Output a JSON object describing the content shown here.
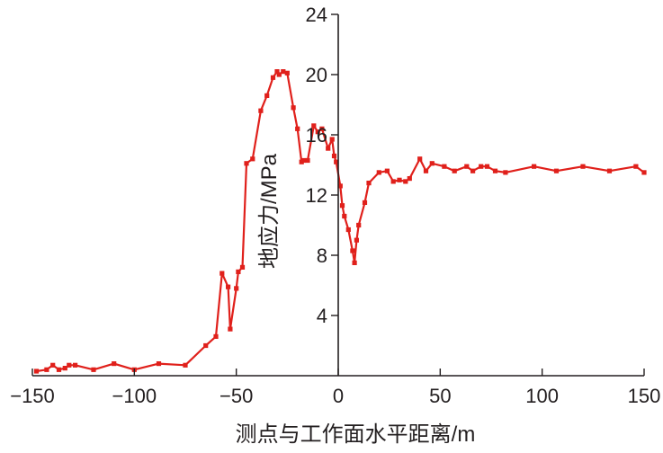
{
  "chart_data": {
    "type": "line",
    "title": "",
    "xlabel": "测点与工作面水平距离/m",
    "ylabel": "地应力/MPa",
    "xlim": [
      -150,
      150
    ],
    "ylim": [
      0,
      24
    ],
    "xticks": [
      -150,
      -100,
      -50,
      0,
      50,
      100,
      150
    ],
    "yticks": [
      4,
      8,
      12,
      16,
      20,
      24
    ],
    "x_tick_labels": [
      "−150",
      "−100",
      "−50",
      "0",
      "50",
      "100",
      "150"
    ],
    "y_tick_labels": [
      "4",
      "8",
      "12",
      "16",
      "20",
      "24"
    ],
    "grid": false,
    "legend": "none",
    "series": [
      {
        "color": "#e0201b",
        "x": [
          -148,
          -143,
          -140,
          -137,
          -134,
          -132,
          -129,
          -120,
          -110,
          -100,
          -88,
          -75,
          -65,
          -60,
          -57,
          -54,
          -53,
          -50,
          -49,
          -47,
          -45,
          -42,
          -38,
          -35,
          -32,
          -30,
          -29,
          -27,
          -25,
          -22,
          -20,
          -18,
          -17,
          -15,
          -12,
          -10,
          -8,
          -5,
          -3,
          -2,
          -1,
          1,
          2,
          3,
          5,
          7,
          8,
          9,
          10,
          13,
          15,
          20,
          24,
          27,
          30,
          33,
          35,
          40,
          43,
          46,
          52,
          57,
          63,
          66,
          70,
          73,
          77,
          82,
          96,
          107,
          120,
          133,
          146,
          150
        ],
        "y": [
          0.3,
          0.4,
          0.7,
          0.4,
          0.5,
          0.7,
          0.7,
          0.4,
          0.8,
          0.4,
          0.8,
          0.7,
          2.0,
          2.6,
          6.8,
          5.9,
          3.1,
          5.8,
          6.9,
          7.2,
          14.1,
          14.4,
          17.6,
          18.6,
          19.8,
          20.2,
          20.0,
          20.2,
          20.1,
          17.8,
          16.4,
          14.2,
          14.3,
          14.3,
          16.6,
          16.2,
          16.4,
          15.1,
          15.7,
          14.6,
          14.2,
          12.6,
          11.3,
          10.6,
          9.7,
          8.3,
          7.5,
          9.0,
          10.0,
          11.5,
          12.8,
          13.5,
          13.6,
          12.9,
          13.0,
          12.9,
          13.1,
          14.4,
          13.6,
          14.1,
          13.9,
          13.6,
          13.9,
          13.6,
          13.9,
          13.9,
          13.6,
          13.5,
          13.9,
          13.6,
          13.9,
          13.6,
          13.9,
          13.5
        ]
      }
    ]
  }
}
